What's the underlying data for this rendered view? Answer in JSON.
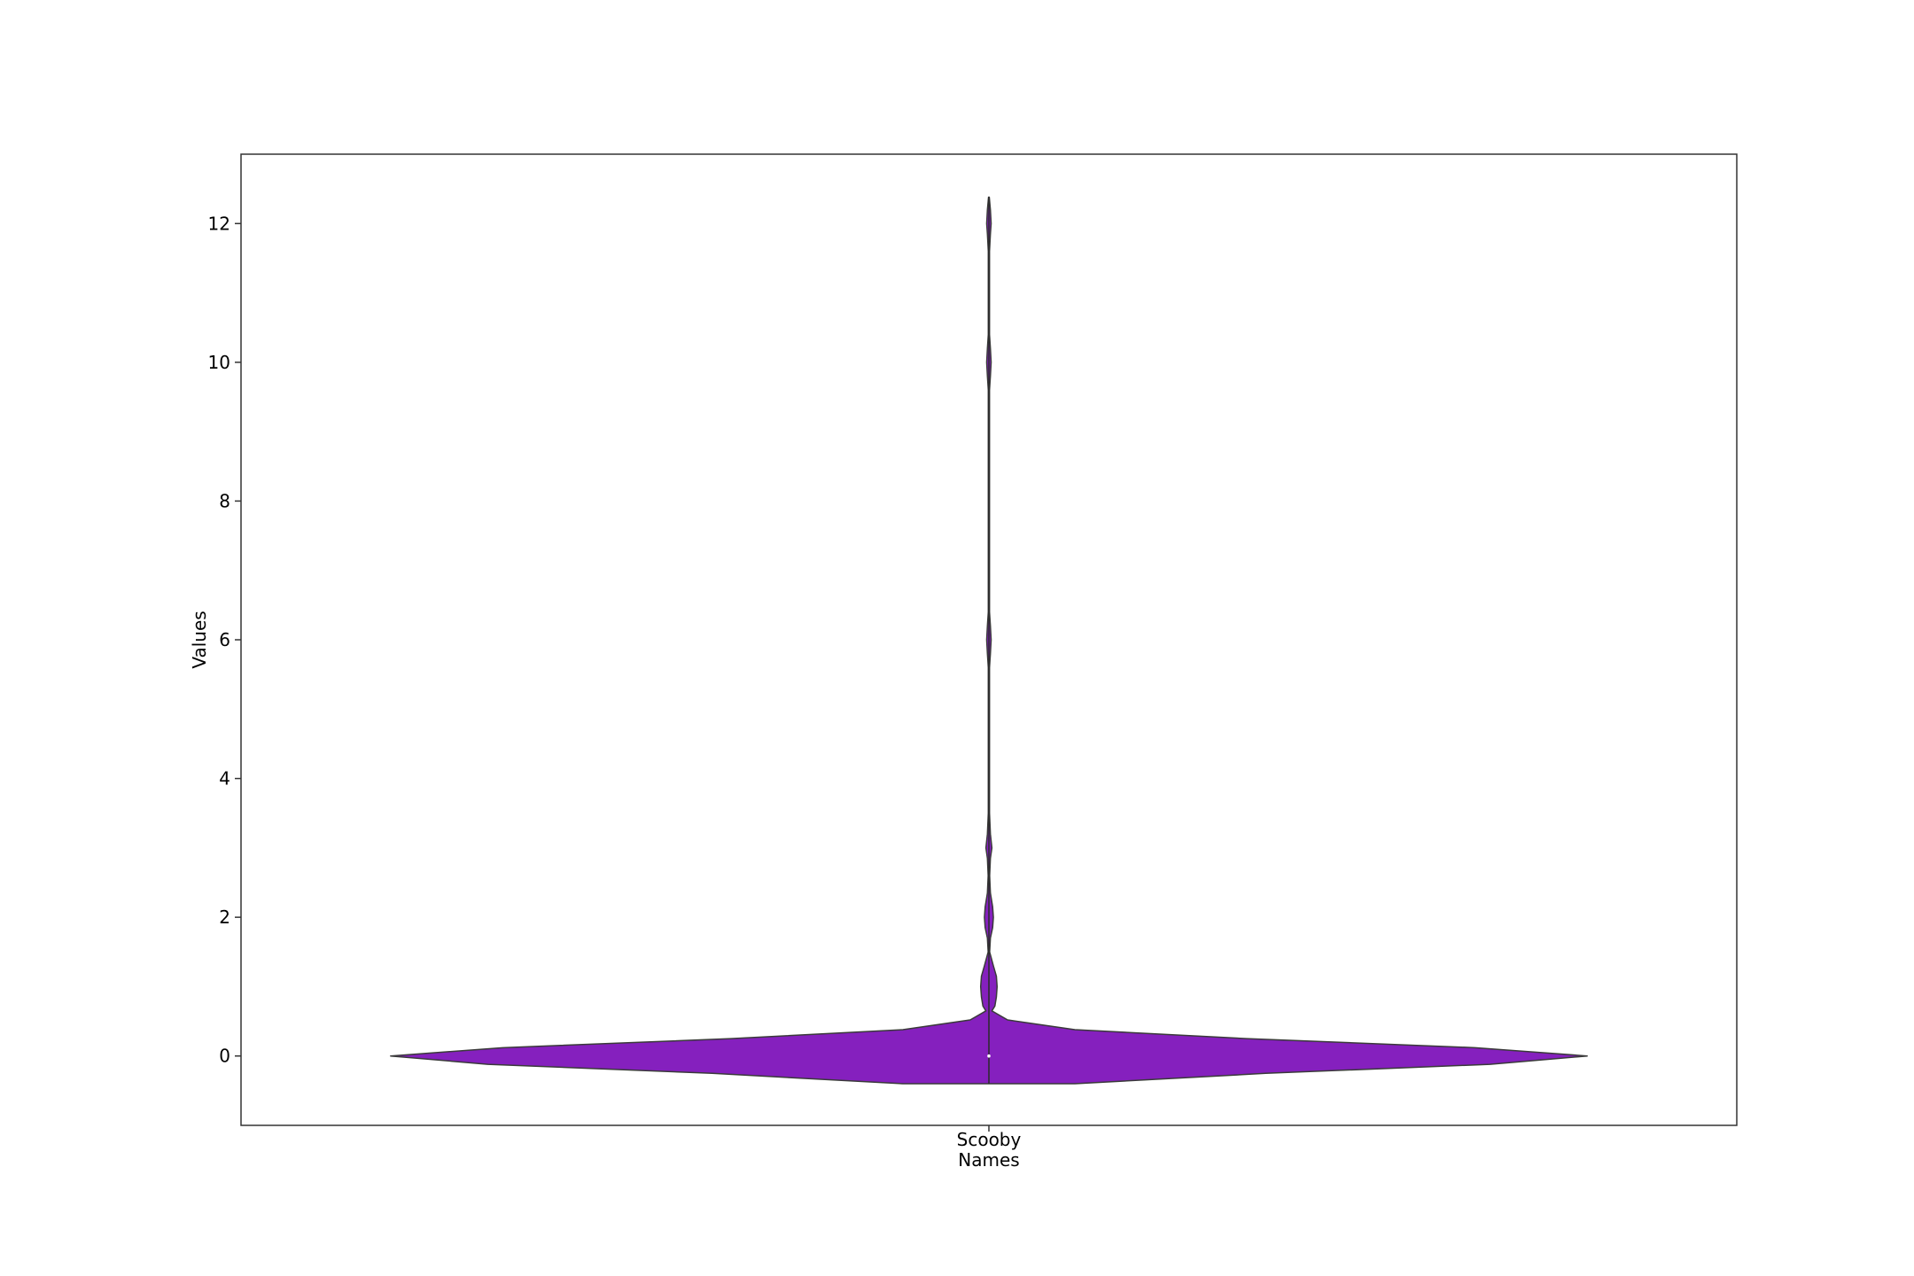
{
  "chart_data": {
    "type": "violin",
    "categories": [
      "Scooby"
    ],
    "xlabel": "Names",
    "ylabel": "Values",
    "ylim": [
      -1,
      13
    ],
    "yticks": [
      0,
      2,
      4,
      6,
      8,
      10,
      12
    ],
    "legend": "none",
    "grid": false,
    "colors": {
      "fill": "#8520be",
      "edge": "#3a3a3a",
      "median": "#ffffff"
    },
    "median": 0,
    "density_profile": [
      {
        "y": -0.4,
        "half_width": 0.115
      },
      {
        "y": -0.25,
        "half_width": 0.37
      },
      {
        "y": -0.12,
        "half_width": 0.67
      },
      {
        "y": 0,
        "half_width": 0.8
      },
      {
        "y": 0.12,
        "half_width": 0.65
      },
      {
        "y": 0.25,
        "half_width": 0.345
      },
      {
        "y": 0.38,
        "half_width": 0.115
      },
      {
        "y": 0.52,
        "half_width": 0.025
      },
      {
        "y": 0.65,
        "half_width": 0.004
      },
      {
        "y": 0.72,
        "half_width": 0.008
      },
      {
        "y": 0.85,
        "half_width": 0.01
      },
      {
        "y": 1.0,
        "half_width": 0.011
      },
      {
        "y": 1.15,
        "half_width": 0.01
      },
      {
        "y": 1.3,
        "half_width": 0.006
      },
      {
        "y": 1.5,
        "half_width": 0.001
      },
      {
        "y": 1.7,
        "half_width": 0.002
      },
      {
        "y": 1.85,
        "half_width": 0.005
      },
      {
        "y": 2.0,
        "half_width": 0.006
      },
      {
        "y": 2.15,
        "half_width": 0.005
      },
      {
        "y": 2.35,
        "half_width": 0.002
      },
      {
        "y": 2.6,
        "half_width": 0.001
      },
      {
        "y": 2.85,
        "half_width": 0.002
      },
      {
        "y": 3.0,
        "half_width": 0.004
      },
      {
        "y": 3.2,
        "half_width": 0.002
      },
      {
        "y": 3.5,
        "half_width": 0.0008
      },
      {
        "y": 5.6,
        "half_width": 0.0008
      },
      {
        "y": 5.8,
        "half_width": 0.002
      },
      {
        "y": 6.0,
        "half_width": 0.003
      },
      {
        "y": 6.2,
        "half_width": 0.002
      },
      {
        "y": 6.4,
        "half_width": 0.0008
      },
      {
        "y": 9.6,
        "half_width": 0.0008
      },
      {
        "y": 9.8,
        "half_width": 0.002
      },
      {
        "y": 10.0,
        "half_width": 0.003
      },
      {
        "y": 10.2,
        "half_width": 0.002
      },
      {
        "y": 10.4,
        "half_width": 0.0008
      },
      {
        "y": 11.6,
        "half_width": 0.0008
      },
      {
        "y": 11.85,
        "half_width": 0.002
      },
      {
        "y": 12.0,
        "half_width": 0.003
      },
      {
        "y": 12.2,
        "half_width": 0.002
      },
      {
        "y": 12.38,
        "half_width": 0.0005
      }
    ]
  }
}
